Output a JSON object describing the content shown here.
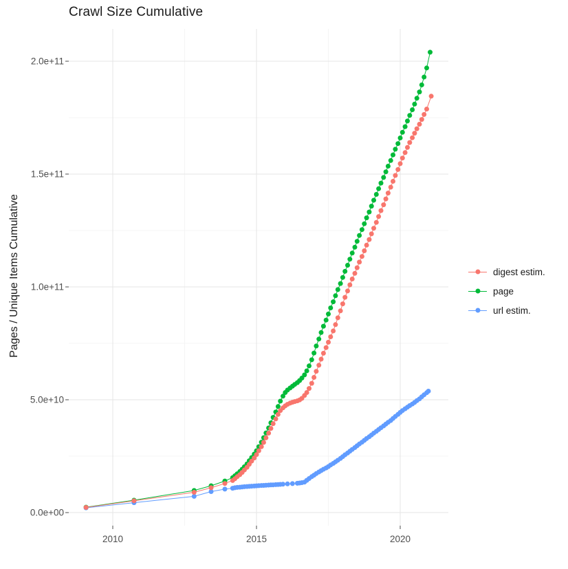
{
  "page": {
    "background": "#FFFFFF"
  },
  "chart_data": {
    "type": "scatter",
    "title": "Crawl Size Cumulative",
    "xlabel": "",
    "ylabel": "Pages / Unique Items Cumulative",
    "grid": {
      "major_color": "#E5E5E5",
      "minor_color": "#F1F1F1",
      "background": "#FFFFFF",
      "grid_on": true
    },
    "axis_text_color": "#4D4D4D",
    "tick_color": "#4D4D4D",
    "xlim": [
      2008.5,
      2021.7
    ],
    "ylim": [
      0,
      210000000000.0
    ],
    "x_ticks": [
      {
        "value": 2010,
        "label": "2010"
      },
      {
        "value": 2015,
        "label": "2015"
      },
      {
        "value": 2020,
        "label": "2020"
      }
    ],
    "x_minor_ticks": [
      2012.5,
      2017.5
    ],
    "y_ticks": [
      {
        "value": 0,
        "label": "0.0e+00"
      },
      {
        "value": 50,
        "label": "5.0e+10"
      },
      {
        "value": 100,
        "label": "1.0e+11"
      },
      {
        "value": 150,
        "label": "1.5e+11"
      },
      {
        "value": 200,
        "label": "2.0e+11"
      }
    ],
    "y_minor_ticks": [
      25,
      75,
      125,
      175
    ],
    "value_unit": "billions (1e9) of pages / unique items",
    "legend": {
      "position": "right"
    },
    "series": [
      {
        "name": "digest estim.",
        "color": "#F8766D",
        "points": [
          [
            2009.07,
            2.3
          ],
          [
            2010.74,
            5.2
          ],
          [
            2012.83,
            9.0
          ],
          [
            2013.42,
            11.0
          ],
          [
            2013.9,
            12.9
          ],
          [
            2014.17,
            14.2
          ],
          [
            2014.25,
            15.0
          ],
          [
            2014.33,
            15.9
          ],
          [
            2014.42,
            16.8
          ],
          [
            2014.5,
            17.8
          ],
          [
            2014.58,
            18.9
          ],
          [
            2014.67,
            20.1
          ],
          [
            2014.75,
            21.4
          ],
          [
            2014.83,
            22.8
          ],
          [
            2014.92,
            24.2
          ],
          [
            2015.0,
            25.7
          ],
          [
            2015.08,
            27.4
          ],
          [
            2015.17,
            29.2
          ],
          [
            2015.25,
            31.1
          ],
          [
            2015.33,
            33.1
          ],
          [
            2015.42,
            35.2
          ],
          [
            2015.5,
            37.3
          ],
          [
            2015.58,
            39.4
          ],
          [
            2015.67,
            41.5
          ],
          [
            2015.75,
            43.5
          ],
          [
            2015.83,
            45.2
          ],
          [
            2015.92,
            46.4
          ],
          [
            2016.0,
            47.3
          ],
          [
            2016.08,
            48.0
          ],
          [
            2016.17,
            48.5
          ],
          [
            2016.25,
            48.9
          ],
          [
            2016.33,
            49.2
          ],
          [
            2016.42,
            49.5
          ],
          [
            2016.5,
            49.9
          ],
          [
            2016.58,
            50.6
          ],
          [
            2016.67,
            51.9
          ],
          [
            2016.75,
            53.2
          ],
          [
            2016.83,
            55.0
          ],
          [
            2016.92,
            57.3
          ],
          [
            2017.0,
            59.9
          ],
          [
            2017.08,
            62.6
          ],
          [
            2017.17,
            65.3
          ],
          [
            2017.25,
            68.0
          ],
          [
            2017.33,
            70.6
          ],
          [
            2017.42,
            73.1
          ],
          [
            2017.5,
            75.5
          ],
          [
            2017.58,
            77.9
          ],
          [
            2017.67,
            80.5
          ],
          [
            2017.75,
            83.3
          ],
          [
            2017.83,
            86.3
          ],
          [
            2017.92,
            89.4
          ],
          [
            2018.0,
            92.5
          ],
          [
            2018.08,
            95.4
          ],
          [
            2018.17,
            98.2
          ],
          [
            2018.25,
            100.9
          ],
          [
            2018.33,
            103.5
          ],
          [
            2018.42,
            106.0
          ],
          [
            2018.5,
            108.5
          ],
          [
            2018.58,
            111.0
          ],
          [
            2018.67,
            113.5
          ],
          [
            2018.75,
            116.0
          ],
          [
            2018.83,
            118.5
          ],
          [
            2018.92,
            121.0
          ],
          [
            2019.0,
            123.5
          ],
          [
            2019.08,
            126.0
          ],
          [
            2019.17,
            128.6
          ],
          [
            2019.25,
            131.2
          ],
          [
            2019.33,
            133.8
          ],
          [
            2019.42,
            136.4
          ],
          [
            2019.5,
            139.0
          ],
          [
            2019.58,
            141.6
          ],
          [
            2019.67,
            144.2
          ],
          [
            2019.75,
            146.8
          ],
          [
            2019.83,
            149.4
          ],
          [
            2019.92,
            152.0
          ],
          [
            2020.0,
            154.6
          ],
          [
            2020.08,
            157.1
          ],
          [
            2020.17,
            159.5
          ],
          [
            2020.25,
            161.8
          ],
          [
            2020.33,
            164.0
          ],
          [
            2020.42,
            166.1
          ],
          [
            2020.5,
            168.1
          ],
          [
            2020.58,
            170.1
          ],
          [
            2020.67,
            172.1
          ],
          [
            2020.75,
            174.2
          ],
          [
            2020.83,
            176.4
          ],
          [
            2020.92,
            178.8
          ],
          [
            2021.08,
            184.5
          ]
        ]
      },
      {
        "name": "page",
        "color": "#00BA38",
        "points": [
          [
            2009.07,
            2.4
          ],
          [
            2010.74,
            5.5
          ],
          [
            2012.83,
            9.8
          ],
          [
            2013.42,
            11.9
          ],
          [
            2013.9,
            14.0
          ],
          [
            2014.17,
            15.5
          ],
          [
            2014.25,
            16.3
          ],
          [
            2014.33,
            17.2
          ],
          [
            2014.42,
            18.2
          ],
          [
            2014.5,
            19.2
          ],
          [
            2014.58,
            20.3
          ],
          [
            2014.67,
            21.6
          ],
          [
            2014.75,
            23.0
          ],
          [
            2014.83,
            24.4
          ],
          [
            2014.92,
            25.9
          ],
          [
            2015.0,
            27.4
          ],
          [
            2015.08,
            29.2
          ],
          [
            2015.17,
            31.2
          ],
          [
            2015.25,
            33.2
          ],
          [
            2015.33,
            35.3
          ],
          [
            2015.42,
            37.5
          ],
          [
            2015.5,
            39.8
          ],
          [
            2015.58,
            42.2
          ],
          [
            2015.67,
            44.6
          ],
          [
            2015.75,
            47.0
          ],
          [
            2015.83,
            49.4
          ],
          [
            2015.92,
            51.6
          ],
          [
            2016.0,
            53.2
          ],
          [
            2016.08,
            54.3
          ],
          [
            2016.17,
            55.2
          ],
          [
            2016.25,
            56.0
          ],
          [
            2016.33,
            56.8
          ],
          [
            2016.42,
            57.6
          ],
          [
            2016.5,
            58.5
          ],
          [
            2016.58,
            59.6
          ],
          [
            2016.67,
            61.0
          ],
          [
            2016.75,
            62.8
          ],
          [
            2016.83,
            65.0
          ],
          [
            2016.92,
            67.7
          ],
          [
            2017.0,
            70.7
          ],
          [
            2017.08,
            73.8
          ],
          [
            2017.17,
            76.9
          ],
          [
            2017.25,
            79.8
          ],
          [
            2017.33,
            82.6
          ],
          [
            2017.42,
            85.3
          ],
          [
            2017.5,
            88.0
          ],
          [
            2017.58,
            90.7
          ],
          [
            2017.67,
            93.4
          ],
          [
            2017.75,
            96.1
          ],
          [
            2017.83,
            98.8
          ],
          [
            2017.92,
            101.5
          ],
          [
            2018.0,
            104.2
          ],
          [
            2018.08,
            106.9
          ],
          [
            2018.17,
            109.6
          ],
          [
            2018.25,
            112.3
          ],
          [
            2018.33,
            115.0
          ],
          [
            2018.42,
            117.6
          ],
          [
            2018.5,
            120.2
          ],
          [
            2018.58,
            122.8
          ],
          [
            2018.67,
            125.4
          ],
          [
            2018.75,
            128.0
          ],
          [
            2018.83,
            130.6
          ],
          [
            2018.92,
            133.2
          ],
          [
            2019.0,
            135.8
          ],
          [
            2019.08,
            138.4
          ],
          [
            2019.17,
            141.0
          ],
          [
            2019.25,
            143.5
          ],
          [
            2019.33,
            146.0
          ],
          [
            2019.42,
            148.5
          ],
          [
            2019.5,
            151.0
          ],
          [
            2019.58,
            153.5
          ],
          [
            2019.67,
            156.0
          ],
          [
            2019.75,
            158.5
          ],
          [
            2019.83,
            161.0
          ],
          [
            2019.92,
            163.5
          ],
          [
            2020.0,
            166.0
          ],
          [
            2020.08,
            168.5
          ],
          [
            2020.17,
            171.0
          ],
          [
            2020.25,
            173.5
          ],
          [
            2020.33,
            176.0
          ],
          [
            2020.42,
            178.5
          ],
          [
            2020.5,
            181.0
          ],
          [
            2020.58,
            183.6
          ],
          [
            2020.67,
            186.4
          ],
          [
            2020.75,
            189.5
          ],
          [
            2020.83,
            193.0
          ],
          [
            2020.92,
            197.0
          ],
          [
            2021.04,
            204.0
          ]
        ]
      },
      {
        "name": "url estim.",
        "color": "#619CFF",
        "points": [
          [
            2009.07,
            2.1
          ],
          [
            2010.74,
            4.4
          ],
          [
            2012.83,
            7.2
          ],
          [
            2013.42,
            9.3
          ],
          [
            2013.9,
            10.4
          ],
          [
            2014.17,
            10.8
          ],
          [
            2014.25,
            11.0
          ],
          [
            2014.33,
            11.15
          ],
          [
            2014.42,
            11.25
          ],
          [
            2014.5,
            11.35
          ],
          [
            2014.58,
            11.45
          ],
          [
            2014.67,
            11.55
          ],
          [
            2014.75,
            11.62
          ],
          [
            2014.83,
            11.7
          ],
          [
            2014.92,
            11.78
          ],
          [
            2015.0,
            11.85
          ],
          [
            2015.08,
            11.92
          ],
          [
            2015.17,
            12.0
          ],
          [
            2015.25,
            12.05
          ],
          [
            2015.33,
            12.1
          ],
          [
            2015.42,
            12.18
          ],
          [
            2015.5,
            12.25
          ],
          [
            2015.58,
            12.3
          ],
          [
            2015.67,
            12.38
          ],
          [
            2015.75,
            12.45
          ],
          [
            2015.83,
            12.5
          ],
          [
            2015.92,
            12.58
          ],
          [
            2016.08,
            12.7
          ],
          [
            2016.25,
            12.85
          ],
          [
            2016.42,
            13.0
          ],
          [
            2016.5,
            13.1
          ],
          [
            2016.58,
            13.25
          ],
          [
            2016.67,
            13.5
          ],
          [
            2016.75,
            14.3
          ],
          [
            2016.83,
            15.1
          ],
          [
            2016.92,
            15.9
          ],
          [
            2017.0,
            16.6
          ],
          [
            2017.08,
            17.3
          ],
          [
            2017.17,
            18.0
          ],
          [
            2017.25,
            18.6
          ],
          [
            2017.33,
            19.2
          ],
          [
            2017.42,
            19.8
          ],
          [
            2017.5,
            20.4
          ],
          [
            2017.58,
            21.1
          ],
          [
            2017.67,
            21.8
          ],
          [
            2017.75,
            22.5
          ],
          [
            2017.83,
            23.2
          ],
          [
            2017.92,
            24.0
          ],
          [
            2018.0,
            24.8
          ],
          [
            2018.08,
            25.6
          ],
          [
            2018.17,
            26.4
          ],
          [
            2018.25,
            27.2
          ],
          [
            2018.33,
            28.0
          ],
          [
            2018.42,
            28.8
          ],
          [
            2018.5,
            29.6
          ],
          [
            2018.58,
            30.4
          ],
          [
            2018.67,
            31.2
          ],
          [
            2018.75,
            32.0
          ],
          [
            2018.83,
            32.8
          ],
          [
            2018.92,
            33.6
          ],
          [
            2019.0,
            34.4
          ],
          [
            2019.08,
            35.2
          ],
          [
            2019.17,
            36.0
          ],
          [
            2019.25,
            36.8
          ],
          [
            2019.33,
            37.6
          ],
          [
            2019.42,
            38.4
          ],
          [
            2019.5,
            39.2
          ],
          [
            2019.58,
            40.0
          ],
          [
            2019.67,
            40.8
          ],
          [
            2019.75,
            41.7
          ],
          [
            2019.83,
            42.6
          ],
          [
            2019.92,
            43.5
          ],
          [
            2020.0,
            44.4
          ],
          [
            2020.08,
            45.2
          ],
          [
            2020.17,
            46.0
          ],
          [
            2020.25,
            46.7
          ],
          [
            2020.33,
            47.4
          ],
          [
            2020.42,
            48.1
          ],
          [
            2020.5,
            48.8
          ],
          [
            2020.58,
            49.6
          ],
          [
            2020.67,
            50.4
          ],
          [
            2020.75,
            51.3
          ],
          [
            2020.83,
            52.2
          ],
          [
            2020.92,
            53.1
          ],
          [
            2020.98,
            53.8
          ]
        ]
      }
    ]
  }
}
